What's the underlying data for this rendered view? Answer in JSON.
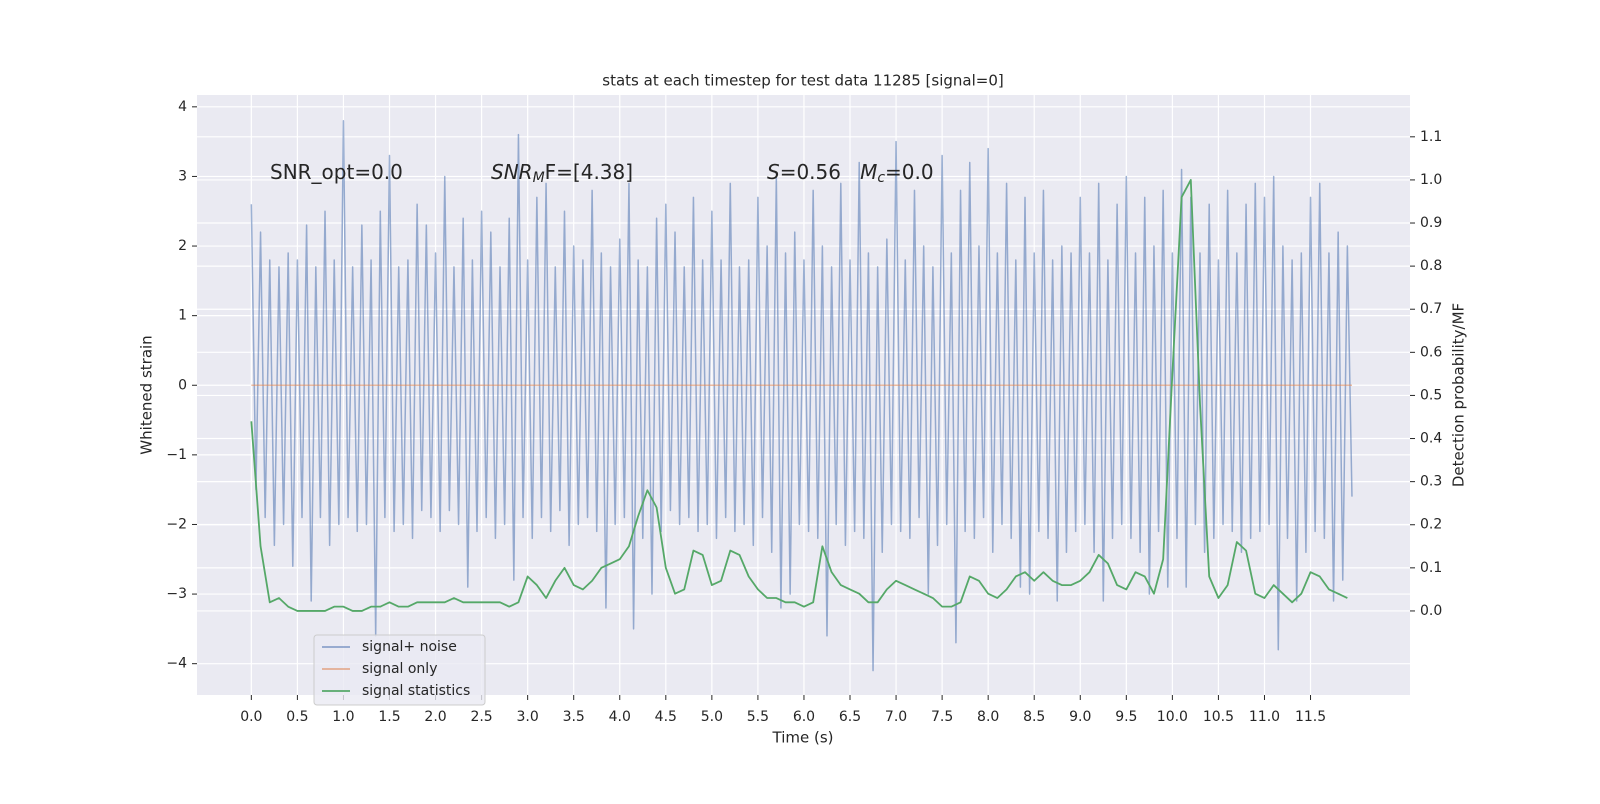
{
  "chart_data": {
    "type": "line",
    "title": "stats at each timestep for test data 11285 [signal=0]",
    "xlabel": "Time (s)",
    "ylabel": "Whitened strain",
    "y2label": "Detection probability/MF",
    "xlim": [
      -0.59,
      12.58
    ],
    "ylim": [
      -4.45,
      4.17
    ],
    "y2lim": [
      -0.195,
      1.197
    ],
    "xticks": [
      {
        "value": 0,
        "label": "0.0"
      },
      0.5,
      {
        "value": 1,
        "label": "1.0"
      },
      1.5,
      {
        "value": 2,
        "label": "2.0"
      },
      2.5,
      {
        "value": 3,
        "label": "3.0"
      },
      3.5,
      {
        "value": 4,
        "label": "4.0"
      },
      4.5,
      {
        "value": 5,
        "label": "5.0"
      },
      5.5,
      {
        "value": 6,
        "label": "6.0"
      },
      6.5,
      {
        "value": 7,
        "label": "7.0"
      },
      7.5,
      {
        "value": 8,
        "label": "8.0"
      },
      8.5,
      {
        "value": 9,
        "label": "9.0"
      },
      9.5,
      {
        "value": 10,
        "label": "10.0"
      },
      10.5,
      {
        "value": 11,
        "label": "11.0"
      },
      11.5
    ],
    "yticks": [
      {
        "value": -4,
        "label": "−4"
      },
      {
        "value": -3,
        "label": "−3"
      },
      {
        "value": -2,
        "label": "−2"
      },
      {
        "value": -1,
        "label": "−1"
      },
      0,
      1,
      2,
      3,
      4
    ],
    "y2ticks": [
      {
        "value": 0,
        "label": "0.0"
      },
      0.1,
      0.2,
      0.3,
      0.4,
      0.5,
      0.6,
      0.7,
      0.8,
      0.9,
      {
        "value": 1,
        "label": "1.0"
      },
      1.1
    ],
    "grid": true,
    "legend": "lower left",
    "annotations": [
      [
        {
          "t": "SNR_opt=0.0"
        }
      ],
      [
        {
          "t": "SNR",
          "style": "italic"
        },
        {
          "t": "M",
          "style": "sub"
        },
        {
          "t": "F=[4.38]"
        }
      ],
      [
        {
          "t": "S",
          "style": "italic"
        },
        {
          "t": "=0.56   "
        },
        {
          "t": "M",
          "style": "italic"
        },
        {
          "t": "c",
          "style": "sub"
        },
        {
          "t": "=0.0"
        }
      ]
    ],
    "series": [
      {
        "name": "signal+ noise",
        "color": "#4c72b0",
        "axis": "y",
        "x": [
          0,
          0.05,
          0.1,
          0.15,
          0.2,
          0.25,
          0.3,
          0.35,
          0.4,
          0.45,
          0.5,
          0.55,
          0.6,
          0.65,
          0.7,
          0.75,
          0.8,
          0.85,
          0.9,
          0.95,
          1,
          1.05,
          1.1,
          1.15,
          1.2,
          1.25,
          1.3,
          1.35,
          1.4,
          1.45,
          1.5,
          1.55,
          1.6,
          1.65,
          1.7,
          1.75,
          1.8,
          1.85,
          1.9,
          1.95,
          2,
          2.05,
          2.1,
          2.15,
          2.2,
          2.25,
          2.3,
          2.35,
          2.4,
          2.45,
          2.5,
          2.55,
          2.6,
          2.65,
          2.7,
          2.75,
          2.8,
          2.85,
          2.9,
          2.95,
          3,
          3.05,
          3.1,
          3.15,
          3.2,
          3.25,
          3.3,
          3.35,
          3.4,
          3.45,
          3.5,
          3.55,
          3.6,
          3.65,
          3.7,
          3.75,
          3.8,
          3.85,
          3.9,
          3.95,
          4,
          4.05,
          4.1,
          4.15,
          4.2,
          4.25,
          4.3,
          4.35,
          4.4,
          4.45,
          4.5,
          4.55,
          4.6,
          4.65,
          4.7,
          4.75,
          4.8,
          4.85,
          4.9,
          4.95,
          5,
          5.05,
          5.1,
          5.15,
          5.2,
          5.25,
          5.3,
          5.35,
          5.4,
          5.45,
          5.5,
          5.55,
          5.6,
          5.65,
          5.7,
          5.75,
          5.8,
          5.85,
          5.9,
          5.95,
          6,
          6.05,
          6.1,
          6.15,
          6.2,
          6.25,
          6.3,
          6.35,
          6.4,
          6.45,
          6.5,
          6.55,
          6.6,
          6.65,
          6.7,
          6.75,
          6.8,
          6.85,
          6.9,
          6.95,
          7,
          7.05,
          7.1,
          7.15,
          7.2,
          7.25,
          7.3,
          7.35,
          7.4,
          7.45,
          7.5,
          7.55,
          7.6,
          7.65,
          7.7,
          7.75,
          7.8,
          7.85,
          7.9,
          7.95,
          8,
          8.05,
          8.1,
          8.15,
          8.2,
          8.25,
          8.3,
          8.35,
          8.4,
          8.45,
          8.5,
          8.55,
          8.6,
          8.65,
          8.7,
          8.75,
          8.8,
          8.85,
          8.9,
          8.95,
          9,
          9.05,
          9.1,
          9.15,
          9.2,
          9.25,
          9.3,
          9.35,
          9.4,
          9.45,
          9.5,
          9.55,
          9.6,
          9.65,
          9.7,
          9.75,
          9.8,
          9.85,
          9.9,
          9.95,
          10,
          10.05,
          10.1,
          10.15,
          10.2,
          10.25,
          10.3,
          10.35,
          10.4,
          10.45,
          10.5,
          10.55,
          10.6,
          10.65,
          10.7,
          10.75,
          10.8,
          10.85,
          10.9,
          10.95,
          11,
          11.05,
          11.1,
          11.15,
          11.2,
          11.25,
          11.3,
          11.35,
          11.4,
          11.45,
          11.5,
          11.55,
          11.6,
          11.65,
          11.7,
          11.75,
          11.8,
          11.85,
          11.9,
          11.95
        ],
        "values": [
          2.6,
          -1.5,
          2.2,
          -1.9,
          1.8,
          -2.3,
          1.7,
          -2.0,
          1.9,
          -2.6,
          1.8,
          -1.9,
          2.3,
          -3.1,
          1.7,
          -1.9,
          2.5,
          -2.3,
          1.8,
          -2.0,
          3.8,
          -1.9,
          1.7,
          -2.1,
          2.3,
          -2.0,
          1.8,
          -3.6,
          2.5,
          -1.9,
          3.3,
          -2.1,
          1.7,
          -2.0,
          1.8,
          -2.2,
          2.6,
          -1.8,
          2.3,
          -1.9,
          1.9,
          -2.1,
          3.0,
          -1.8,
          1.7,
          -2.0,
          2.4,
          -2.9,
          1.8,
          -2.1,
          2.5,
          -1.9,
          2.2,
          -2.2,
          1.7,
          -2.0,
          2.4,
          -2.8,
          3.6,
          -1.9,
          1.8,
          -2.2,
          2.7,
          -1.9,
          2.9,
          -2.1,
          1.7,
          -1.8,
          2.5,
          -2.3,
          2.0,
          -2.0,
          1.8,
          -1.9,
          2.8,
          -2.1,
          1.9,
          -3.2,
          1.7,
          -2.0,
          2.1,
          -1.9,
          2.9,
          -3.5,
          1.8,
          -2.2,
          1.7,
          -3.0,
          2.4,
          -2.1,
          2.6,
          -1.8,
          2.2,
          -2.0,
          1.7,
          -1.9,
          2.7,
          -2.1,
          1.8,
          -2.0,
          2.5,
          -2.2,
          1.8,
          -1.9,
          2.9,
          -2.1,
          1.7,
          -2.0,
          1.8,
          -2.3,
          2.7,
          -1.9,
          2.0,
          -2.4,
          3.0,
          -3.2,
          1.9,
          -3.0,
          2.2,
          -2.0,
          1.8,
          -2.1,
          2.8,
          -2.2,
          2.0,
          -3.6,
          1.7,
          -2.0,
          2.9,
          -2.3,
          1.8,
          -2.1,
          3.2,
          -2.2,
          1.9,
          -4.1,
          1.7,
          -2.4,
          2.1,
          -2.0,
          3.5,
          -2.1,
          1.8,
          -2.2,
          2.8,
          -1.9,
          2.0,
          -3.0,
          1.7,
          -2.3,
          3.3,
          -2.0,
          1.9,
          -3.7,
          2.8,
          -2.1,
          3.2,
          -2.2,
          2.0,
          -1.9,
          3.4,
          -2.4,
          1.9,
          -2.0,
          2.9,
          -2.2,
          1.8,
          -2.9,
          2.7,
          -3.0,
          1.9,
          -2.1,
          2.8,
          -2.2,
          1.8,
          -3.1,
          2.0,
          -2.4,
          1.9,
          -2.1,
          2.7,
          -2.0,
          1.9,
          -2.4,
          2.9,
          -3.1,
          1.8,
          -2.2,
          2.6,
          -2.0,
          3.0,
          -2.2,
          1.9,
          -2.4,
          2.7,
          -3.0,
          2.0,
          -2.1,
          2.8,
          -2.9,
          1.9,
          -2.2,
          3.1,
          -2.9,
          2.7,
          -2.0,
          1.9,
          -2.4,
          2.6,
          -2.2,
          1.8,
          -2.0,
          2.8,
          -2.1,
          1.9,
          -2.4,
          2.6,
          -2.2,
          2.9,
          -2.1,
          2.7,
          -2.0,
          3.0,
          -3.8,
          2.0,
          -2.2,
          1.8,
          -3.1,
          1.9,
          -2.4,
          2.7,
          -2.1,
          2.9,
          -2.2,
          1.9,
          -3.1,
          2.2,
          -2.8,
          2.0,
          -1.6
        ]
      },
      {
        "name": "signal only",
        "color": "#dd8452",
        "axis": "y",
        "x": [
          0,
          11.95
        ],
        "values": [
          0,
          0
        ]
      },
      {
        "name": "signal statistics",
        "color": "#55a868",
        "axis": "y2",
        "x": [
          0,
          0.1,
          0.2,
          0.3,
          0.4,
          0.5,
          0.6,
          0.7,
          0.8,
          0.9,
          1,
          1.1,
          1.2,
          1.3,
          1.4,
          1.5,
          1.6,
          1.7,
          1.8,
          1.9,
          2,
          2.1,
          2.2,
          2.3,
          2.4,
          2.5,
          2.6,
          2.7,
          2.8,
          2.9,
          3,
          3.1,
          3.2,
          3.3,
          3.4,
          3.5,
          3.6,
          3.7,
          3.8,
          3.9,
          4,
          4.1,
          4.2,
          4.3,
          4.4,
          4.5,
          4.6,
          4.7,
          4.8,
          4.9,
          5,
          5.1,
          5.2,
          5.3,
          5.4,
          5.5,
          5.6,
          5.7,
          5.8,
          5.9,
          6,
          6.1,
          6.2,
          6.3,
          6.4,
          6.5,
          6.6,
          6.7,
          6.8,
          6.9,
          7,
          7.1,
          7.2,
          7.3,
          7.4,
          7.5,
          7.6,
          7.7,
          7.8,
          7.9,
          8,
          8.1,
          8.2,
          8.3,
          8.4,
          8.5,
          8.6,
          8.7,
          8.8,
          8.9,
          9,
          9.1,
          9.2,
          9.3,
          9.4,
          9.5,
          9.6,
          9.7,
          9.8,
          9.9,
          10,
          10.1,
          10.2,
          10.3,
          10.4,
          10.5,
          10.6,
          10.7,
          10.8,
          10.9,
          11,
          11.1,
          11.2,
          11.3,
          11.4,
          11.5,
          11.6,
          11.7,
          11.8,
          11.9
        ],
        "values": [
          0.44,
          0.15,
          0.02,
          0.03,
          0.01,
          0,
          0,
          0,
          0,
          0.01,
          0.01,
          0,
          0,
          0.01,
          0.01,
          0.02,
          0.01,
          0.01,
          0.02,
          0.02,
          0.02,
          0.02,
          0.03,
          0.02,
          0.02,
          0.02,
          0.02,
          0.02,
          0.01,
          0.02,
          0.08,
          0.06,
          0.03,
          0.07,
          0.1,
          0.06,
          0.05,
          0.07,
          0.1,
          0.11,
          0.12,
          0.15,
          0.22,
          0.28,
          0.24,
          0.1,
          0.04,
          0.05,
          0.14,
          0.13,
          0.06,
          0.07,
          0.14,
          0.13,
          0.08,
          0.05,
          0.03,
          0.03,
          0.02,
          0.02,
          0.01,
          0.02,
          0.15,
          0.09,
          0.06,
          0.05,
          0.04,
          0.02,
          0.02,
          0.05,
          0.07,
          0.06,
          0.05,
          0.04,
          0.03,
          0.01,
          0.01,
          0.02,
          0.08,
          0.07,
          0.04,
          0.03,
          0.05,
          0.08,
          0.09,
          0.07,
          0.09,
          0.07,
          0.06,
          0.06,
          0.07,
          0.09,
          0.13,
          0.11,
          0.06,
          0.05,
          0.09,
          0.08,
          0.04,
          0.12,
          0.55,
          0.96,
          1.0,
          0.48,
          0.08,
          0.03,
          0.06,
          0.16,
          0.14,
          0.04,
          0.03,
          0.06,
          0.04,
          0.02,
          0.04,
          0.09,
          0.08,
          0.05,
          0.04,
          0.03
        ]
      }
    ]
  }
}
